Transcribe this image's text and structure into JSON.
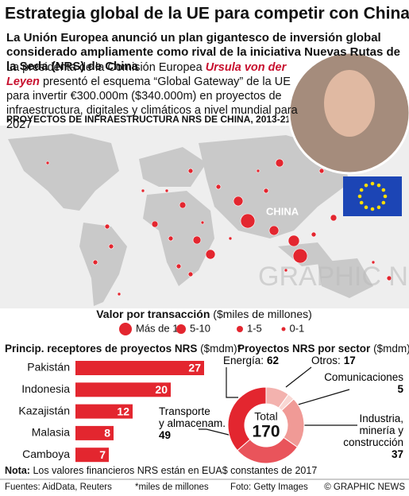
{
  "header": {
    "title": "Estrategia global de la UE para competir con China",
    "subtitle": "La Unión Europea anunció un plan gigantesco de inversión global considerado ampliamente como rival de la iniciativa Nuevas Rutas de la Seda (NRS) de China"
  },
  "intro": {
    "before": "La presidenta de la Comisión Europea",
    "name": "Ursula von der Leyen",
    "after": "presentó el esquema “Global Gateway” de la UE para invertir €300.000m ($340.000m) en proyectos de infraestructura, digitales y climáticos a nivel mundial para 2027"
  },
  "map": {
    "title": "PROYECTOS DE INFRAESTRUCTURA NRS DE CHINA, 2013-21",
    "country_label": "CHINA",
    "watermark": "GRAPHIC NEWS",
    "legend": {
      "title": "Valor por transacción",
      "unit": "($miles de millones)",
      "items": [
        "Más de 10",
        "5-10",
        "1-5",
        "0-1"
      ]
    }
  },
  "chart_data": [
    {
      "type": "bar",
      "title": "Princip. receptores de proyectos NRS",
      "unit": "($mdm)*",
      "categories": [
        "Pakistán",
        "Indonesia",
        "Kazajistán",
        "Malasia",
        "Camboya"
      ],
      "values": [
        27,
        20,
        12,
        8,
        7
      ],
      "color": "#e3262f",
      "xlim": [
        0,
        27
      ]
    },
    {
      "type": "pie",
      "title": "Proyectos NRS por sector",
      "unit": "($mdm)",
      "categories": [
        "Otros:",
        "Comunicaciones",
        "Industria,\nminería y\nconstrucción",
        "Transporte\ny almacenam.",
        "Energía:"
      ],
      "values": [
        17,
        5,
        37,
        49,
        62
      ],
      "colors": [
        "#f3b2ae",
        "#f9d7d3",
        "#f09a96",
        "#e9545b",
        "#e3262f"
      ],
      "total_label": "Total",
      "total": 170
    }
  ],
  "footer": {
    "note_label": "Nota:",
    "note": "Los valores financieros NRS están en EUA$ constantes de 2017",
    "sources": "Fuentes: AidData, Reuters",
    "footnote": "*miles de millones",
    "photo": "Foto: Getty Images",
    "credit": "© GRAPHIC NEWS"
  }
}
